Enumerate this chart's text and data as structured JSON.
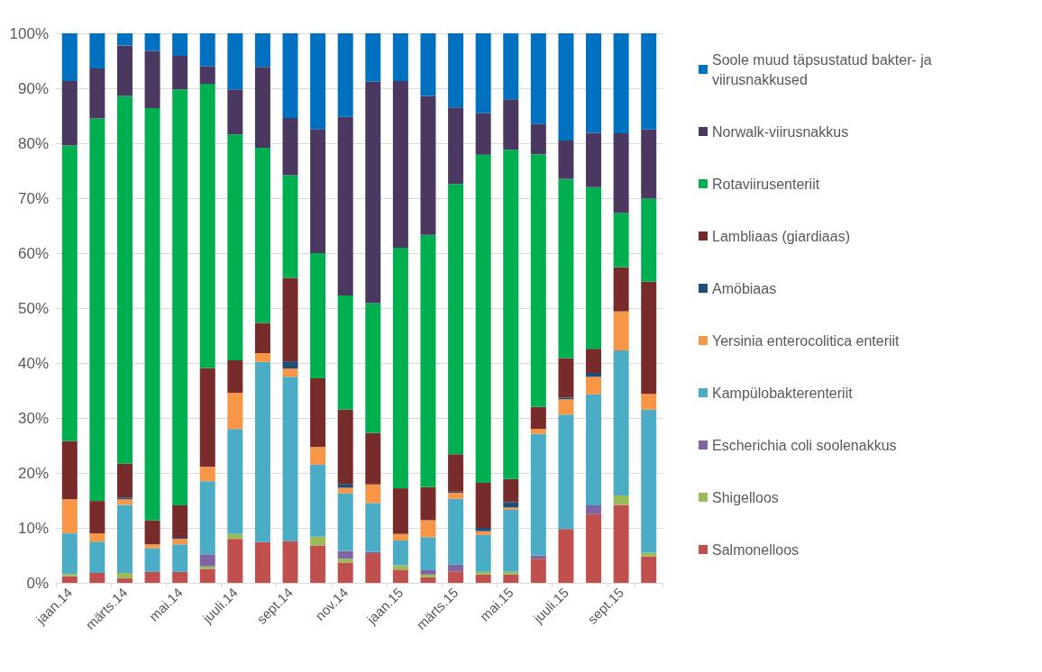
{
  "chart_data": {
    "type": "bar",
    "stacked": true,
    "categories": [
      "jaan.14",
      null,
      "märts.14",
      null,
      "mai.14",
      null,
      "juuli.14",
      null,
      "sept.14",
      null,
      "nov.14",
      null,
      "jaan.15",
      null,
      "märts.15",
      null,
      "mai.15",
      null,
      "juuli.15",
      null,
      "sept.15",
      null
    ],
    "ylim": [
      0,
      100
    ],
    "yticks": [
      {
        "value": 0,
        "label": "0%"
      },
      {
        "value": 10,
        "label": "10%"
      },
      {
        "value": 20,
        "label": "20%"
      },
      {
        "value": 30,
        "label": "30%"
      },
      {
        "value": 40,
        "label": "40%"
      },
      {
        "value": 50,
        "label": "50%"
      },
      {
        "value": 60,
        "label": "60%"
      },
      {
        "value": 70,
        "label": "70%"
      },
      {
        "value": 80,
        "label": "80%"
      },
      {
        "value": 90,
        "label": "90%"
      },
      {
        "value": 100,
        "label": "100%"
      }
    ],
    "grid": "y",
    "legend": "right",
    "series": [
      {
        "name": "Salmonelloos",
        "color": "#c0504d",
        "values": [
          1.2,
          1.8,
          0.8,
          2.0,
          2.0,
          2.5,
          8.0,
          7.4,
          7.6,
          6.8,
          3.7,
          5.4,
          2.4,
          1.0,
          2.1,
          1.5,
          1.5,
          4.4,
          9.8,
          12.5,
          14.2,
          4.8
        ]
      },
      {
        "name": "Shigelloos",
        "color": "#9bbb59",
        "values": [
          0.4,
          0,
          1.0,
          0,
          0,
          0.5,
          0.9,
          0,
          0,
          1.6,
          0.7,
          0,
          0.8,
          0.5,
          0,
          0.5,
          0.5,
          0,
          0,
          0,
          1.7,
          0.7
        ]
      },
      {
        "name": "Escherichia coli soolenakkus",
        "color": "#8064a2",
        "values": [
          0,
          0,
          0,
          0,
          0,
          2.2,
          0,
          0,
          0,
          0,
          1.4,
          0.2,
          0,
          0.8,
          1.2,
          0,
          0,
          0.6,
          0,
          1.6,
          0,
          0
        ]
      },
      {
        "name": "Kampülobakterenteriit",
        "color": "#4bacc6",
        "values": [
          7.4,
          5.7,
          12.4,
          4.3,
          5.0,
          13.3,
          19.1,
          32.8,
          29.9,
          13.1,
          10.5,
          8.9,
          4.5,
          6.0,
          12.0,
          6.7,
          11.3,
          22.1,
          20.8,
          20.2,
          26.4,
          26.0
        ]
      },
      {
        "name": "Yersinia enterocolitica enteriit",
        "color": "#f79646",
        "values": [
          6.2,
          1.5,
          1.0,
          0.7,
          1.0,
          2.6,
          6.6,
          1.6,
          1.5,
          3.2,
          1.0,
          3.4,
          1.2,
          3.1,
          1.1,
          0.7,
          0.4,
          0.9,
          2.8,
          3.2,
          7.1,
          2.9
        ]
      },
      {
        "name": "Amöbiaas",
        "color": "#1f4e79",
        "values": [
          0,
          0,
          0.3,
          0,
          0.2,
          0,
          0,
          0,
          1.3,
          0,
          0.7,
          0,
          0,
          0,
          0.2,
          0.6,
          1.0,
          0,
          0.3,
          0.7,
          0,
          0
        ]
      },
      {
        "name": "Lambliaas (giardiaas)",
        "color": "#772b2b",
        "values": [
          10.6,
          5.9,
          6.2,
          4.4,
          5.9,
          18.0,
          5.9,
          5.5,
          15.2,
          12.5,
          13.5,
          9.4,
          8.3,
          6.0,
          6.8,
          8.2,
          4.2,
          4.0,
          7.2,
          4.4,
          8.0,
          20.4
        ]
      },
      {
        "name": "Rotaviirusenteriit",
        "color": "#00b050",
        "values": [
          53.8,
          69.6,
          66.9,
          75.0,
          75.7,
          51.7,
          41.1,
          31.9,
          18.7,
          22.8,
          20.8,
          23.6,
          43.8,
          45.9,
          49.2,
          59.7,
          59.9,
          46.0,
          32.6,
          29.4,
          9.9,
          15.1
        ]
      },
      {
        "name": "Norwalk-viirusnakkus",
        "color": "#4b3860",
        "values": [
          11.7,
          9.1,
          9.2,
          10.4,
          6.1,
          3.2,
          8.2,
          14.7,
          10.4,
          22.6,
          32.5,
          40.3,
          30.3,
          25.3,
          13.9,
          7.6,
          9.2,
          5.5,
          7.0,
          9.9,
          14.5,
          12.6
        ]
      },
      {
        "name": "Soole muud täpsustatud bakter- ja viirusnakkused",
        "color": "#0070c0",
        "values": [
          8.7,
          6.4,
          2.2,
          3.2,
          4.1,
          6.0,
          10.2,
          6.1,
          15.4,
          17.4,
          15.2,
          8.8,
          8.7,
          11.4,
          13.5,
          14.5,
          12.0,
          16.5,
          19.5,
          18.1,
          18.2,
          17.5
        ]
      }
    ]
  }
}
